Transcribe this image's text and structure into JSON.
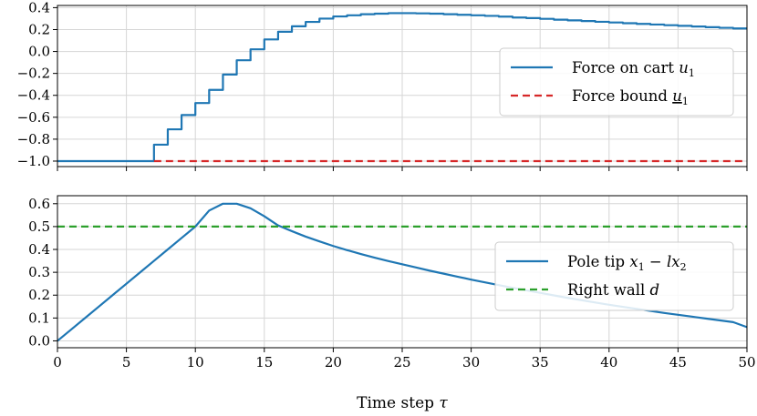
{
  "chart_data": [
    {
      "type": "line",
      "xlim": [
        0,
        50
      ],
      "ylim": [
        -1.05,
        0.42
      ],
      "grid": true,
      "legend_position": "center-right",
      "xticks": [
        0,
        5,
        10,
        15,
        20,
        25,
        30,
        35,
        40,
        45,
        50
      ],
      "yticks": [
        -1.0,
        -0.8,
        -0.6,
        -0.4,
        -0.2,
        0.0,
        0.2,
        0.4
      ],
      "ytick_labels": [
        "−1.0",
        "−0.8",
        "−0.6",
        "−0.4",
        "−0.2",
        "0.0",
        "0.2",
        "0.4"
      ],
      "series": [
        {
          "name": "Force on cart u₁",
          "name_main": "Force on cart ",
          "name_var": "u",
          "name_sub": "1",
          "color": "#1f77b4",
          "style": "steps-post",
          "x": [
            0,
            1,
            2,
            3,
            4,
            5,
            6,
            7,
            8,
            9,
            10,
            11,
            12,
            13,
            14,
            15,
            16,
            17,
            18,
            19,
            20,
            21,
            22,
            23,
            24,
            25,
            26,
            27,
            28,
            29,
            30,
            31,
            32,
            33,
            34,
            35,
            36,
            37,
            38,
            39,
            40,
            41,
            42,
            43,
            44,
            45,
            46,
            47,
            48,
            49,
            50
          ],
          "y": [
            -1.0,
            -1.0,
            -1.0,
            -1.0,
            -1.0,
            -1.0,
            -1.0,
            -0.85,
            -0.71,
            -0.58,
            -0.47,
            -0.35,
            -0.21,
            -0.08,
            0.02,
            0.11,
            0.18,
            0.23,
            0.27,
            0.3,
            0.32,
            0.33,
            0.34,
            0.345,
            0.35,
            0.35,
            0.348,
            0.345,
            0.34,
            0.335,
            0.33,
            0.325,
            0.318,
            0.31,
            0.305,
            0.298,
            0.29,
            0.284,
            0.278,
            0.271,
            0.265,
            0.258,
            0.252,
            0.246,
            0.24,
            0.234,
            0.228,
            0.222,
            0.216,
            0.21,
            0.21
          ]
        },
        {
          "name": "Force bound u₁",
          "name_main": "Force bound ",
          "name_var": "u",
          "name_sub": "1",
          "name_underline": true,
          "color": "#d62728",
          "style": "dashed",
          "x": [
            7,
            50
          ],
          "y": [
            -1.0,
            -1.0
          ]
        }
      ]
    },
    {
      "type": "line",
      "xlim": [
        0,
        50
      ],
      "ylim": [
        -0.03,
        0.635
      ],
      "grid": true,
      "legend_position": "center-right",
      "xlabel": "Time step τ",
      "xlabel_main": "Time step ",
      "xlabel_var": "τ",
      "xticks": [
        0,
        5,
        10,
        15,
        20,
        25,
        30,
        35,
        40,
        45,
        50
      ],
      "yticks": [
        0.0,
        0.1,
        0.2,
        0.3,
        0.4,
        0.5,
        0.6
      ],
      "ytick_labels": [
        "0.0",
        "0.1",
        "0.2",
        "0.3",
        "0.4",
        "0.5",
        "0.6"
      ],
      "series": [
        {
          "name": "Pole tip x₁ − lx₂",
          "name_main": "Pole tip ",
          "name_var": "x",
          "name_sub": "1",
          "name_rest": " − lx",
          "name_sub2": "2",
          "color": "#1f77b4",
          "style": "solid",
          "x": [
            0,
            1,
            2,
            3,
            4,
            5,
            6,
            7,
            8,
            9,
            10,
            11,
            12,
            13,
            14,
            15,
            16,
            17,
            18,
            19,
            20,
            21,
            22,
            23,
            24,
            25,
            26,
            27,
            28,
            29,
            30,
            31,
            32,
            33,
            34,
            35,
            36,
            37,
            38,
            39,
            40,
            41,
            42,
            43,
            44,
            45,
            46,
            47,
            48,
            49,
            50
          ],
          "y": [
            0.0,
            0.05,
            0.1,
            0.15,
            0.2,
            0.25,
            0.3,
            0.35,
            0.4,
            0.45,
            0.5,
            0.57,
            0.6,
            0.6,
            0.58,
            0.545,
            0.505,
            0.48,
            0.456,
            0.435,
            0.415,
            0.397,
            0.38,
            0.364,
            0.349,
            0.335,
            0.321,
            0.307,
            0.294,
            0.281,
            0.268,
            0.256,
            0.244,
            0.232,
            0.221,
            0.21,
            0.199,
            0.188,
            0.178,
            0.168,
            0.158,
            0.149,
            0.14,
            0.131,
            0.122,
            0.114,
            0.106,
            0.098,
            0.09,
            0.082,
            0.06
          ]
        },
        {
          "name": "Right wall d",
          "name_main": "Right wall ",
          "name_var": "d",
          "color": "#2ca02c",
          "style": "dashed",
          "x": [
            0,
            50
          ],
          "y": [
            0.5,
            0.5
          ]
        }
      ]
    }
  ]
}
